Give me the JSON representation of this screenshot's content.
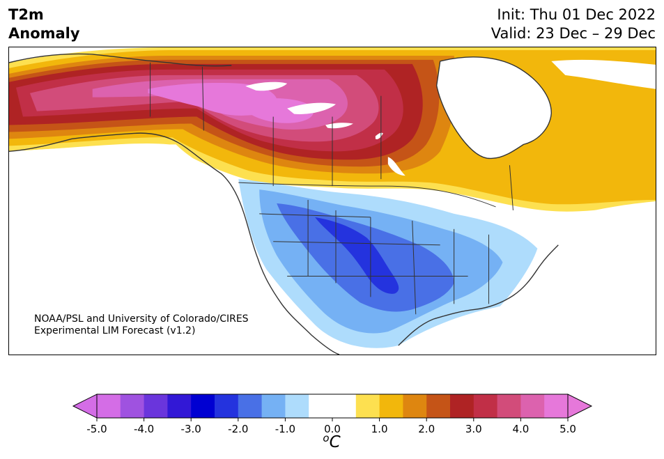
{
  "header": {
    "title_line1": "T2m",
    "title_line2": "Anomaly",
    "init": "Init: Thu 01 Dec 2022",
    "valid": "Valid: 23 Dec – 29 Dec"
  },
  "credit": {
    "line1": "NOAA/PSL and University of Colorado/CIRES",
    "line2": "Experimental LIM Forecast (v1.2)"
  },
  "colorbar": {
    "unit_sup": "o",
    "unit_base": "C",
    "ticks": [
      "-5.0",
      "-4.0",
      "-3.0",
      "-2.0",
      "-1.0",
      "0.0",
      "1.0",
      "2.0",
      "3.0",
      "4.0",
      "5.0"
    ],
    "colors": [
      "#d46de6",
      "#9f52e0",
      "#6a35dc",
      "#3218d6",
      "#0000d2",
      "#2433de",
      "#4970e6",
      "#75b1f4",
      "#aedcfc",
      "#ffffff",
      "#ffffff",
      "#fde050",
      "#f2b70c",
      "#de8610",
      "#c55417",
      "#af2324",
      "#c12f47",
      "#d24c7a",
      "#dc62ae",
      "#e678da"
    ],
    "extend_low_color": "#d46de6",
    "extend_high_color": "#e678da"
  },
  "map": {
    "region": "North America",
    "ocean_color": "#ffffff",
    "outline_color": "#333333"
  }
}
